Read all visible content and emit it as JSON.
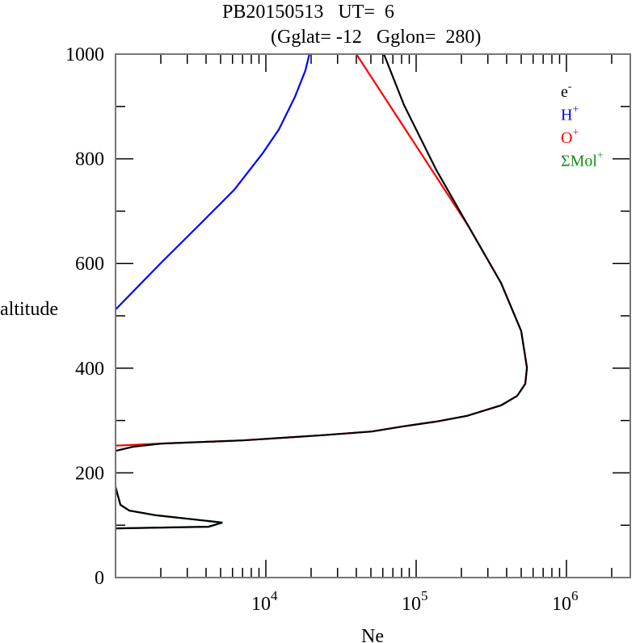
{
  "chart_data": {
    "type": "line",
    "title": "PB20150513   UT=  6",
    "subtitle": "(Gglat= -12   Gglon=  280)",
    "xlabel": "Ne",
    "ylabel": "altitude",
    "xscale": "log",
    "xlim": [
      1000,
      2660000
    ],
    "ylim": [
      0,
      1000
    ],
    "x_ticks": [
      {
        "base": "10",
        "exp": "4",
        "value": 10000
      },
      {
        "base": "10",
        "exp": "5",
        "value": 100000
      },
      {
        "base": "10",
        "exp": "6",
        "value": 1000000
      }
    ],
    "y_ticks": [
      "0",
      "200",
      "400",
      "600",
      "800",
      "1000"
    ],
    "y_tick_values": [
      0,
      200,
      400,
      600,
      800,
      1000
    ],
    "legend_position": "top-right",
    "series": [
      {
        "name": "ΣMol",
        "sup": "+",
        "color": "#1a8a1a",
        "points": [
          [
            1000,
            173
          ],
          [
            1077,
            139
          ],
          [
            1234,
            128
          ],
          [
            1860,
            119
          ],
          [
            4150,
            108
          ],
          [
            5130,
            105
          ],
          [
            4150,
            97
          ],
          [
            1000,
            94
          ]
        ]
      },
      {
        "name": "O",
        "sup": "+",
        "color": "#ff0000",
        "points": [
          [
            40000,
            1000
          ],
          [
            223000,
            671
          ],
          [
            367000,
            563
          ],
          [
            500000,
            471
          ],
          [
            546000,
            401
          ],
          [
            532000,
            370
          ],
          [
            470000,
            347
          ],
          [
            367000,
            329
          ],
          [
            218000,
            309
          ],
          [
            136000,
            298
          ],
          [
            83000,
            289
          ],
          [
            50600,
            279
          ],
          [
            24100,
            272
          ],
          [
            7000,
            262
          ],
          [
            2020,
            256
          ],
          [
            1000,
            252
          ]
        ]
      },
      {
        "name": "H",
        "sup": "+",
        "color": "#0000ff",
        "points": [
          [
            19500,
            1000
          ],
          [
            18300,
            968
          ],
          [
            15600,
            918
          ],
          [
            12200,
            856
          ],
          [
            9500,
            810
          ],
          [
            6170,
            741
          ],
          [
            3760,
            679
          ],
          [
            2020,
            602
          ],
          [
            1000,
            512
          ]
        ]
      },
      {
        "name": "e",
        "sup": "-",
        "color": "#000000",
        "points": [
          [
            61000,
            1000
          ],
          [
            83000,
            903
          ],
          [
            136000,
            779
          ],
          [
            223000,
            671
          ],
          [
            367000,
            563
          ],
          [
            500000,
            471
          ],
          [
            546000,
            401
          ],
          [
            532000,
            370
          ],
          [
            470000,
            347
          ],
          [
            367000,
            329
          ],
          [
            218000,
            309
          ],
          [
            136000,
            298
          ],
          [
            83000,
            289
          ],
          [
            50600,
            279
          ],
          [
            24100,
            272
          ],
          [
            7000,
            262
          ],
          [
            2020,
            256
          ],
          [
            1310,
            250
          ],
          [
            1000,
            242
          ]
        ],
        "lower_points": [
          [
            1000,
            173
          ],
          [
            1077,
            139
          ],
          [
            1234,
            128
          ],
          [
            1860,
            119
          ],
          [
            4150,
            108
          ],
          [
            5130,
            105
          ],
          [
            4150,
            97
          ],
          [
            1000,
            94
          ]
        ]
      }
    ]
  }
}
